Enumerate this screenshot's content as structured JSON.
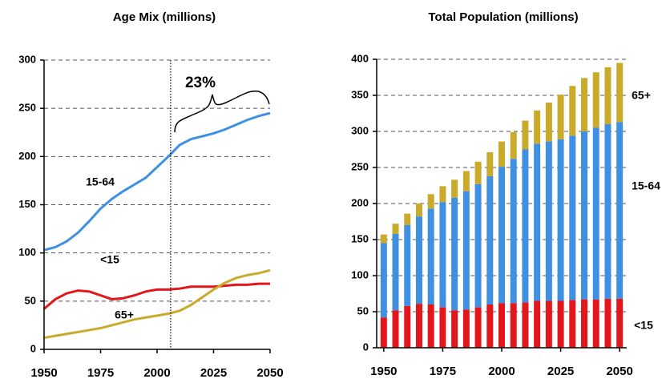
{
  "chart_data": [
    {
      "type": "line",
      "title": "Age Mix (millions)",
      "x": [
        1950,
        1955,
        1960,
        1965,
        1970,
        1975,
        1980,
        1985,
        1990,
        1995,
        2000,
        2005,
        2010,
        2015,
        2020,
        2025,
        2030,
        2035,
        2040,
        2045,
        2050
      ],
      "xlim": [
        1950,
        2050
      ],
      "xticks": [
        1950,
        1975,
        2000,
        2025,
        2050
      ],
      "ylim": [
        0,
        300
      ],
      "yticks": [
        0,
        50,
        100,
        150,
        200,
        250,
        300
      ],
      "grid": true,
      "vline": 2006,
      "annotation": "23%",
      "series": [
        {
          "name": "15-64",
          "color": "#3f8fe3",
          "values": [
            103,
            106,
            112,
            121,
            133,
            146,
            156,
            164,
            171,
            178,
            189,
            200,
            212,
            218,
            221,
            224,
            228,
            233,
            238,
            242,
            245
          ]
        },
        {
          "name": "<15",
          "color": "#e3161c",
          "values": [
            42,
            52,
            58,
            61,
            60,
            56,
            52,
            53,
            56,
            60,
            62,
            62,
            63,
            65,
            65,
            65,
            66,
            67,
            67,
            68,
            68
          ]
        },
        {
          "name": "65+",
          "color": "#c9aa2a",
          "values": [
            12,
            14,
            16,
            18,
            20,
            22,
            25,
            28,
            31,
            33,
            35,
            37,
            40,
            46,
            54,
            62,
            69,
            74,
            77,
            79,
            82
          ]
        }
      ]
    },
    {
      "type": "bar",
      "stacked": true,
      "title": "Total Population (millions)",
      "x": [
        1950,
        1955,
        1960,
        1965,
        1970,
        1975,
        1980,
        1985,
        1990,
        1995,
        2000,
        2005,
        2010,
        2015,
        2020,
        2025,
        2030,
        2035,
        2040,
        2045,
        2050
      ],
      "xlim": [
        1947,
        2053
      ],
      "xticks": [
        1950,
        1975,
        2000,
        2025,
        2050
      ],
      "ylim": [
        0,
        400
      ],
      "yticks": [
        0,
        50,
        100,
        150,
        200,
        250,
        300,
        350,
        400
      ],
      "grid": true,
      "series": [
        {
          "name": "<15",
          "color": "#e3161c",
          "values": [
            42,
            52,
            58,
            61,
            60,
            56,
            52,
            53,
            56,
            60,
            62,
            62,
            63,
            65,
            65,
            65,
            66,
            67,
            67,
            68,
            68
          ]
        },
        {
          "name": "15-64",
          "color": "#3f8fe3",
          "values": [
            103,
            106,
            112,
            121,
            133,
            146,
            156,
            164,
            171,
            178,
            189,
            200,
            212,
            218,
            221,
            224,
            228,
            233,
            238,
            242,
            245
          ]
        },
        {
          "name": "65+",
          "color": "#c9aa2a",
          "values": [
            12,
            14,
            16,
            18,
            20,
            22,
            25,
            28,
            31,
            33,
            35,
            37,
            40,
            46,
            54,
            62,
            69,
            74,
            77,
            79,
            82
          ]
        }
      ]
    }
  ]
}
